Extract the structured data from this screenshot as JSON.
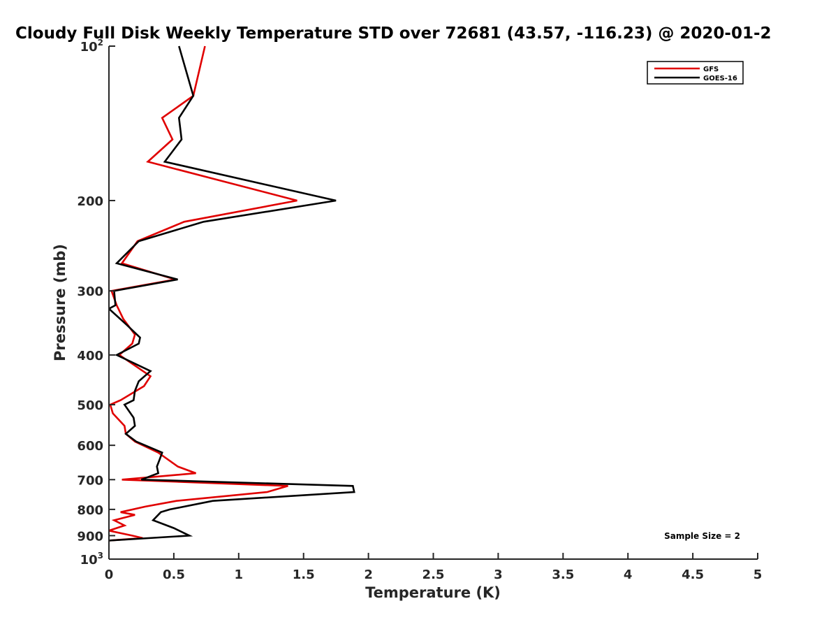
{
  "chart_data": {
    "type": "line",
    "title": "Cloudy Full Disk Weekly Temperature STD over 72681 (43.57, -116.23) @ 2020-01-2",
    "xlabel": "Temperature (K)",
    "ylabel": "Pressure (mb)",
    "xlim": [
      0,
      5
    ],
    "ylim": [
      1000,
      100
    ],
    "yscale": "log",
    "x_ticks": [
      "0",
      "0.5",
      "1",
      "1.5",
      "2",
      "2.5",
      "3",
      "3.5",
      "4",
      "4.5",
      "5"
    ],
    "y_ticks": [
      {
        "value": 100,
        "base": "10",
        "exp": "2"
      },
      {
        "value": 200,
        "label": "200"
      },
      {
        "value": 300,
        "label": "300"
      },
      {
        "value": 400,
        "label": "400"
      },
      {
        "value": 500,
        "label": "500"
      },
      {
        "value": 600,
        "label": "600"
      },
      {
        "value": 700,
        "label": "700"
      },
      {
        "value": 800,
        "label": "800"
      },
      {
        "value": 900,
        "label": "900"
      },
      {
        "value": 1000,
        "base": "10",
        "exp": "3"
      }
    ],
    "legend_position": "top-right",
    "annotation": "Sample Size = 2",
    "series": [
      {
        "name": "GFS",
        "color": "#e00000",
        "points": [
          [
            0.74,
            100
          ],
          [
            0.65,
            125
          ],
          [
            0.41,
            138
          ],
          [
            0.49,
            152
          ],
          [
            0.3,
            168
          ],
          [
            1.45,
            200
          ],
          [
            0.58,
            220
          ],
          [
            0.22,
            240
          ],
          [
            0.1,
            265
          ],
          [
            0.51,
            285
          ],
          [
            0.02,
            300
          ],
          [
            0.06,
            320
          ],
          [
            0.11,
            340
          ],
          [
            0.2,
            365
          ],
          [
            0.18,
            380
          ],
          [
            0.08,
            400
          ],
          [
            0.32,
            440
          ],
          [
            0.27,
            460
          ],
          [
            0.09,
            490
          ],
          [
            0.01,
            500
          ],
          [
            0.03,
            520
          ],
          [
            0.12,
            550
          ],
          [
            0.13,
            570
          ],
          [
            0.2,
            590
          ],
          [
            0.38,
            620
          ],
          [
            0.53,
            660
          ],
          [
            0.67,
            680
          ],
          [
            0.1,
            700
          ],
          [
            1.38,
            720
          ],
          [
            1.22,
            740
          ],
          [
            0.52,
            770
          ],
          [
            0.28,
            790
          ],
          [
            0.09,
            810
          ],
          [
            0.2,
            820
          ],
          [
            0.04,
            840
          ],
          [
            0.12,
            860
          ],
          [
            0.0,
            880
          ],
          [
            0.18,
            900
          ],
          [
            0.26,
            910
          ],
          [
            0.0,
            920
          ]
        ]
      },
      {
        "name": "GOES-16",
        "color": "#000000",
        "points": [
          [
            0.54,
            100
          ],
          [
            0.65,
            125
          ],
          [
            0.54,
            138
          ],
          [
            0.56,
            152
          ],
          [
            0.43,
            168
          ],
          [
            1.75,
            200
          ],
          [
            0.73,
            220
          ],
          [
            0.23,
            240
          ],
          [
            0.06,
            265
          ],
          [
            0.53,
            285
          ],
          [
            0.04,
            300
          ],
          [
            0.05,
            320
          ],
          [
            0.0,
            325
          ],
          [
            0.14,
            350
          ],
          [
            0.24,
            370
          ],
          [
            0.23,
            380
          ],
          [
            0.06,
            400
          ],
          [
            0.32,
            430
          ],
          [
            0.23,
            450
          ],
          [
            0.2,
            470
          ],
          [
            0.19,
            490
          ],
          [
            0.12,
            500
          ],
          [
            0.19,
            530
          ],
          [
            0.2,
            550
          ],
          [
            0.13,
            570
          ],
          [
            0.21,
            590
          ],
          [
            0.41,
            620
          ],
          [
            0.39,
            640
          ],
          [
            0.37,
            660
          ],
          [
            0.38,
            680
          ],
          [
            0.25,
            700
          ],
          [
            1.88,
            720
          ],
          [
            1.89,
            740
          ],
          [
            0.8,
            770
          ],
          [
            0.47,
            800
          ],
          [
            0.4,
            810
          ],
          [
            0.34,
            840
          ],
          [
            0.5,
            870
          ],
          [
            0.62,
            900
          ],
          [
            0.0,
            920
          ]
        ]
      }
    ]
  }
}
